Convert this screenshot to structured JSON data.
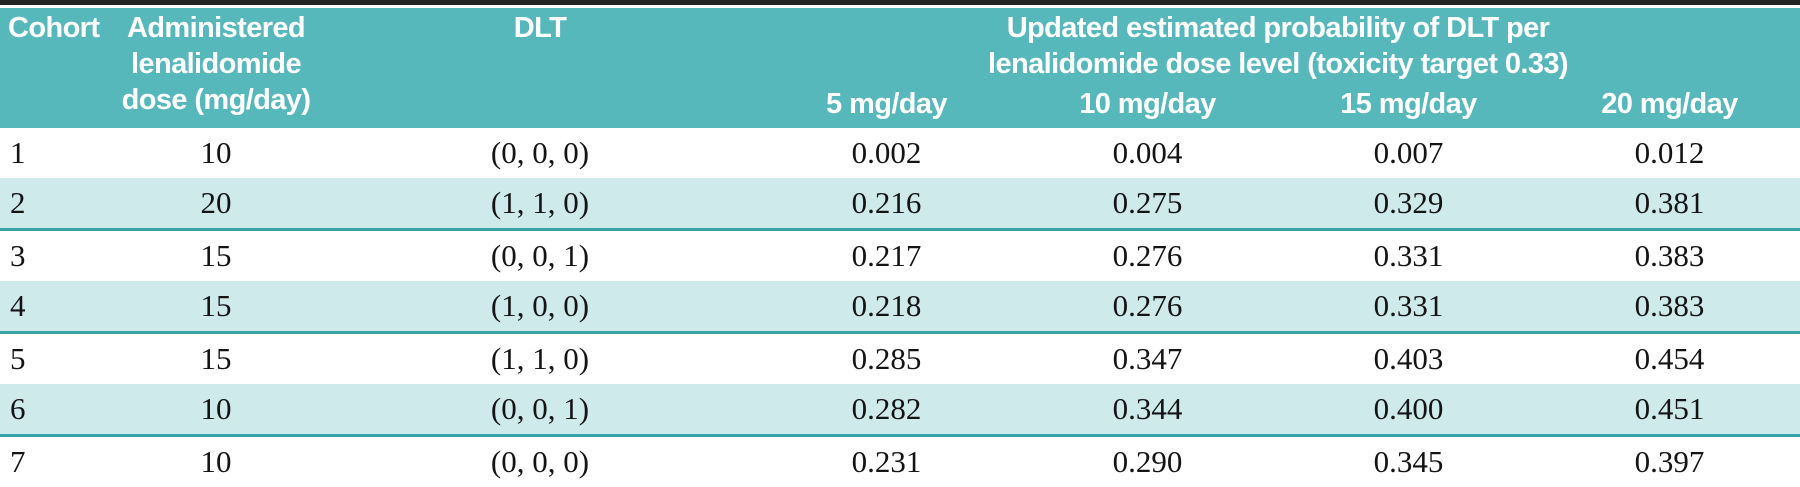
{
  "table": {
    "columns": {
      "cohort": "Cohort",
      "dose_lines": [
        "Administered",
        "lenalidomide",
        "dose (mg/day)"
      ],
      "dlt": "DLT",
      "prob_group_line1": "Updated estimated probability of DLT per",
      "prob_group_line2": "lenalidomide dose level (toxicity target 0.33)",
      "dose_levels": [
        "5 mg/day",
        "10 mg/day",
        "15 mg/day",
        "20 mg/day"
      ]
    },
    "rows": [
      {
        "cohort": "1",
        "dose": "10",
        "dlt": "(0, 0, 0)",
        "p5": "0.002",
        "p10": "0.004",
        "p15": "0.007",
        "p20": "0.012"
      },
      {
        "cohort": "2",
        "dose": "20",
        "dlt": "(1, 1, 0)",
        "p5": "0.216",
        "p10": "0.275",
        "p15": "0.329",
        "p20": "0.381"
      },
      {
        "cohort": "3",
        "dose": "15",
        "dlt": "(0, 0, 1)",
        "p5": "0.217",
        "p10": "0.276",
        "p15": "0.331",
        "p20": "0.383"
      },
      {
        "cohort": "4",
        "dose": "15",
        "dlt": "(1, 0, 0)",
        "p5": "0.218",
        "p10": "0.276",
        "p15": "0.331",
        "p20": "0.383"
      },
      {
        "cohort": "5",
        "dose": "15",
        "dlt": "(1, 1, 0)",
        "p5": "0.285",
        "p10": "0.347",
        "p15": "0.403",
        "p20": "0.454"
      },
      {
        "cohort": "6",
        "dose": "10",
        "dlt": "(0, 0, 1)",
        "p5": "0.282",
        "p10": "0.344",
        "p15": "0.400",
        "p20": "0.451"
      },
      {
        "cohort": "7",
        "dose": "10",
        "dlt": "(0, 0, 0)",
        "p5": "0.231",
        "p10": "0.290",
        "p15": "0.345",
        "p20": "0.397"
      }
    ],
    "colors": {
      "header_bg": "#57b8bc",
      "header_text": "#ffffff",
      "row_shaded_bg": "#cfeaeb",
      "row_shaded_border": "#37a3a8",
      "rule": "#242424",
      "body_text": "#141414"
    }
  },
  "chart_data": {
    "type": "table",
    "title": "Updated estimated probability of DLT per lenalidomide dose level (toxicity target 0.33)",
    "columns": [
      "Cohort",
      "Administered lenalidomide dose (mg/day)",
      "DLT",
      "5 mg/day",
      "10 mg/day",
      "15 mg/day",
      "20 mg/day"
    ],
    "rows": [
      [
        1,
        10,
        "(0, 0, 0)",
        0.002,
        0.004,
        0.007,
        0.012
      ],
      [
        2,
        20,
        "(1, 1, 0)",
        0.216,
        0.275,
        0.329,
        0.381
      ],
      [
        3,
        15,
        "(0, 0, 1)",
        0.217,
        0.276,
        0.331,
        0.383
      ],
      [
        4,
        15,
        "(1, 0, 0)",
        0.218,
        0.276,
        0.331,
        0.383
      ],
      [
        5,
        15,
        "(1, 1, 0)",
        0.285,
        0.347,
        0.403,
        0.454
      ],
      [
        6,
        10,
        "(0, 0, 1)",
        0.282,
        0.344,
        0.4,
        0.451
      ],
      [
        7,
        10,
        "(0, 0, 0)",
        0.231,
        0.29,
        0.345,
        0.397
      ]
    ]
  }
}
